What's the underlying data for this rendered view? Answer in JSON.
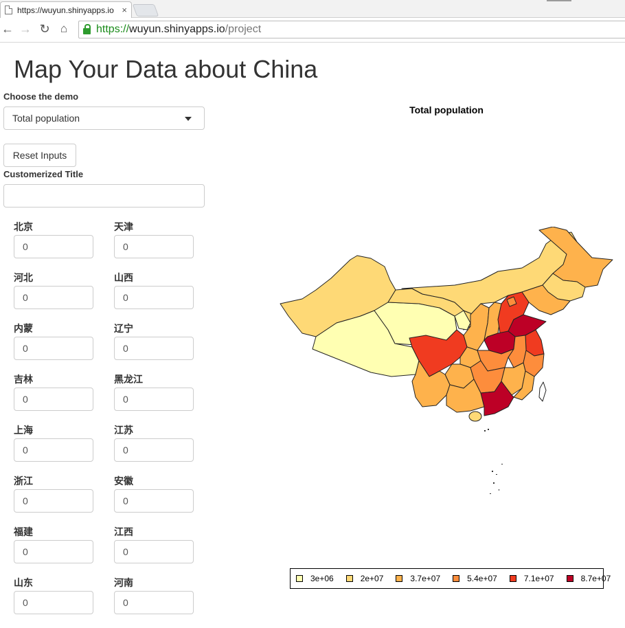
{
  "browser": {
    "tab_title": "https://wuyun.shinyapps.io",
    "tab_close": "×",
    "url_scheme": "https://",
    "url_host": "wuyun.shinyapps.io",
    "url_path": "/project"
  },
  "page": {
    "title": "Map Your Data about China",
    "demo_label": "Choose the demo",
    "demo_selected": "Total population",
    "reset_label": "Reset Inputs",
    "custom_title_label": "Customerized Title",
    "custom_title_value": ""
  },
  "provinces": [
    {
      "name": "北京",
      "value": "0"
    },
    {
      "name": "天津",
      "value": "0"
    },
    {
      "name": "河北",
      "value": "0"
    },
    {
      "name": "山西",
      "value": "0"
    },
    {
      "name": "内蒙",
      "value": "0"
    },
    {
      "name": "辽宁",
      "value": "0"
    },
    {
      "name": "吉林",
      "value": "0"
    },
    {
      "name": "黑龙江",
      "value": "0"
    },
    {
      "name": "上海",
      "value": "0"
    },
    {
      "name": "江苏",
      "value": "0"
    },
    {
      "name": "浙江",
      "value": "0"
    },
    {
      "name": "安徽",
      "value": "0"
    },
    {
      "name": "福建",
      "value": "0"
    },
    {
      "name": "江西",
      "value": "0"
    },
    {
      "name": "山东",
      "value": "0"
    },
    {
      "name": "河南",
      "value": "0"
    }
  ],
  "map": {
    "title": "Total population",
    "legend": [
      {
        "label": "3e+06",
        "color": "#ffffb2"
      },
      {
        "label": "2e+07",
        "color": "#fed976"
      },
      {
        "label": "3.7e+07",
        "color": "#feb24c"
      },
      {
        "label": "5.4e+07",
        "color": "#fd8d3c"
      },
      {
        "label": "7.1e+07",
        "color": "#f03b20"
      },
      {
        "label": "8.7e+07",
        "color": "#bd0026"
      }
    ]
  }
}
